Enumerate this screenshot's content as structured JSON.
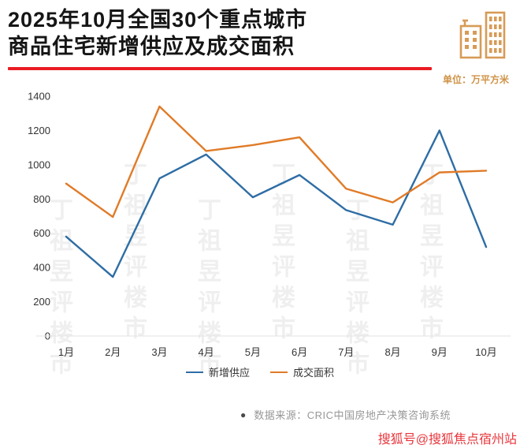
{
  "header": {
    "title_line1": "2025年10月全国30个重点城市",
    "title_line2": "商品住宅新增供应及成交面积",
    "unit_label": "单位：万平方米"
  },
  "chart_data": {
    "type": "line",
    "categories": [
      "1月",
      "2月",
      "3月",
      "4月",
      "5月",
      "6月",
      "7月",
      "8月",
      "9月",
      "10月"
    ],
    "series": [
      {
        "name": "新增供应",
        "color": "#2e6da4",
        "values": [
          580,
          345,
          920,
          1060,
          810,
          940,
          735,
          650,
          1200,
          520
        ]
      },
      {
        "name": "成交面积",
        "color": "#e07b28",
        "values": [
          890,
          695,
          1340,
          1080,
          1115,
          1160,
          860,
          780,
          955,
          965
        ]
      }
    ],
    "title": "2025年10月全国30个重点城市商品住宅新增供应及成交面积",
    "xlabel": "",
    "ylabel": "万平方米",
    "ylim": [
      0,
      1400
    ],
    "yticks": [
      0,
      200,
      400,
      600,
      800,
      1000,
      1200,
      1400
    ],
    "grid": false,
    "legend_position": "bottom"
  },
  "footer": {
    "source_bullet": "●",
    "source_text": "数据来源：CRIC中国房地产决策咨询系统",
    "sohu_watermark": "搜狐号@搜狐焦点宿州站"
  },
  "watermark": {
    "text": "丁祖昱评楼市"
  },
  "colors": {
    "accent_red": "#ea1c24",
    "unit_orange": "#cf9347",
    "series_blue": "#2e6da4",
    "series_orange": "#e07b28",
    "sohu_red": "#e8373d"
  }
}
